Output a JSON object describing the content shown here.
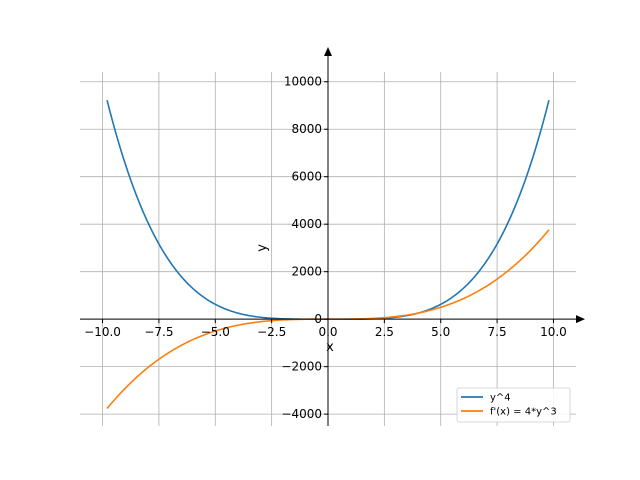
{
  "chart_data": {
    "type": "line",
    "title": "",
    "xlabel": "x",
    "ylabel": "y",
    "xlim": [
      -11,
      11
    ],
    "ylim": [
      -4500,
      11000
    ],
    "x_ticks": [
      -10,
      -7.5,
      -5,
      -2.5,
      0,
      2.5,
      5,
      7.5,
      10
    ],
    "x_tick_labels": [
      "−10.0",
      "−7.5",
      "−5.0",
      "−2.5",
      "0.0",
      "2.5",
      "5.0",
      "7.5",
      "10.0"
    ],
    "y_ticks": [
      -4000,
      -2000,
      0,
      2000,
      4000,
      6000,
      8000,
      10000
    ],
    "y_tick_labels": [
      "−4000",
      "−2000",
      "0",
      "2000",
      "4000",
      "6000",
      "8000",
      "10000"
    ],
    "grid": true,
    "legend_position": "bottom-right",
    "x_range": [
      -9.8,
      9.8
    ],
    "series": [
      {
        "name": "y^4",
        "color": "#1f77b4",
        "x": [
          -9.8,
          -9.0,
          -8.0,
          -7.5,
          -7.0,
          -6.0,
          -5.0,
          -4.0,
          -3.0,
          -2.5,
          -2.0,
          -1.0,
          0,
          1.0,
          2.0,
          2.5,
          3.0,
          4.0,
          5.0,
          6.0,
          7.0,
          7.5,
          8.0,
          9.0,
          9.8
        ],
        "y": [
          9224,
          6561,
          4096,
          3164,
          2401,
          1296,
          625,
          256,
          81,
          39,
          16,
          1,
          0,
          1,
          16,
          39,
          81,
          256,
          625,
          1296,
          2401,
          3164,
          4096,
          6561,
          9224
        ]
      },
      {
        "name": "f'(x) = 4*y^3",
        "color": "#ff7f0e",
        "x": [
          -9.8,
          -9.0,
          -8.0,
          -7.5,
          -7.0,
          -6.0,
          -5.0,
          -4.0,
          -3.0,
          -2.5,
          -2.0,
          -1.0,
          0,
          1.0,
          2.0,
          2.5,
          3.0,
          4.0,
          5.0,
          6.0,
          7.0,
          7.5,
          8.0,
          9.0,
          9.8
        ],
        "y": [
          -3765,
          -2916,
          -2048,
          -1688,
          -1372,
          -864,
          -500,
          -256,
          -108,
          -62.5,
          -32,
          -4,
          0,
          4,
          32,
          62.5,
          108,
          256,
          500,
          864,
          1372,
          1688,
          2048,
          2916,
          3765
        ]
      }
    ]
  }
}
